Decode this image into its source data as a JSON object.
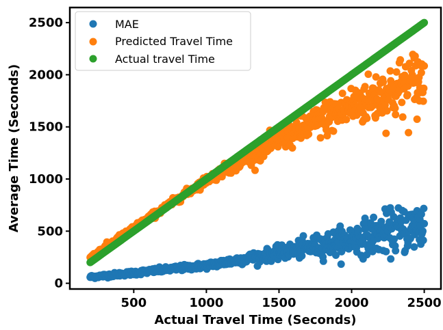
{
  "chart_data": {
    "type": "scatter",
    "title": "",
    "xlabel": "Actual Travel Time (Seconds)",
    "ylabel": "Average Time (Seconds)",
    "xlim": [
      60,
      2615
    ],
    "ylim": [
      -55,
      2645
    ],
    "xticks": [
      500,
      1000,
      1500,
      2000,
      2500
    ],
    "yticks": [
      0,
      500,
      1000,
      1500,
      2000,
      2500
    ],
    "xtick_labels": [
      "500",
      "1000",
      "1500",
      "2000",
      "2500"
    ],
    "ytick_labels": [
      "0",
      "500",
      "1000",
      "1500",
      "2000",
      "2500"
    ],
    "x_range": [
      200,
      2500
    ],
    "grid": false,
    "legend_position": "top-left",
    "series": [
      {
        "name": "MAE",
        "color": "#1f77b4",
        "trend": [
          [
            200,
            60
          ],
          [
            500,
            100
          ],
          [
            1000,
            170
          ],
          [
            1500,
            290
          ],
          [
            2000,
            420
          ],
          [
            2500,
            560
          ]
        ],
        "spread": [
          [
            200,
            8
          ],
          [
            1000,
            15
          ],
          [
            1500,
            30
          ],
          [
            2000,
            70
          ],
          [
            2500,
            130
          ]
        ]
      },
      {
        "name": "Predicted Travel Time",
        "color": "#ff7f0e",
        "trend": [
          [
            200,
            250
          ],
          [
            500,
            530
          ],
          [
            1000,
            990
          ],
          [
            1500,
            1370
          ],
          [
            2000,
            1700
          ],
          [
            2500,
            1950
          ]
        ],
        "spread": [
          [
            200,
            10
          ],
          [
            1000,
            20
          ],
          [
            1500,
            50
          ],
          [
            2000,
            100
          ],
          [
            2500,
            170
          ]
        ]
      },
      {
        "name": "Actual travel Time",
        "color": "#2ca02c",
        "trend": [
          [
            200,
            200
          ],
          [
            2500,
            2500
          ]
        ],
        "spread": [
          [
            200,
            0
          ],
          [
            2500,
            0
          ]
        ]
      }
    ]
  }
}
